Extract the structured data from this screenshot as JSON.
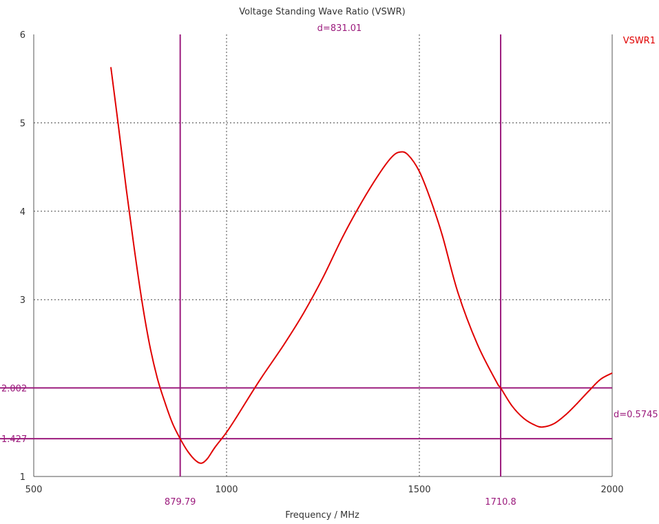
{
  "chart_data": {
    "type": "line",
    "title": "Voltage Standing Wave Ratio (VSWR)",
    "xlabel": "Frequency / MHz",
    "ylabel": "",
    "xlim": [
      500,
      2000
    ],
    "ylim": [
      1,
      6
    ],
    "x_ticks": [
      "500",
      "1000",
      "1500",
      "2000"
    ],
    "y_ticks": [
      "1",
      "3",
      "4",
      "5",
      "6"
    ],
    "grid": true,
    "legend_position": "top-right",
    "series": [
      {
        "name": "VSWR1",
        "color": "#e00000",
        "x": [
          700,
          720,
          740,
          760,
          780,
          800,
          820,
          840,
          860,
          879.79,
          900,
          920,
          935,
          950,
          970,
          1000,
          1030,
          1070,
          1100,
          1150,
          1200,
          1250,
          1300,
          1350,
          1400,
          1430,
          1450,
          1470,
          1500,
          1530,
          1560,
          1600,
          1650,
          1700,
          1710.8,
          1740,
          1770,
          1800,
          1820,
          1850,
          1880,
          1910,
          1940,
          1970,
          2000
        ],
        "y": [
          5.63,
          4.95,
          4.25,
          3.6,
          3.0,
          2.5,
          2.12,
          1.84,
          1.6,
          1.427,
          1.28,
          1.18,
          1.15,
          1.2,
          1.33,
          1.5,
          1.7,
          1.98,
          2.18,
          2.5,
          2.85,
          3.25,
          3.7,
          4.1,
          4.45,
          4.62,
          4.67,
          4.64,
          4.45,
          4.12,
          3.72,
          3.08,
          2.5,
          2.07,
          2.002,
          1.8,
          1.66,
          1.58,
          1.56,
          1.6,
          1.7,
          1.83,
          1.97,
          2.1,
          2.17
        ]
      }
    ],
    "markers": {
      "vertical": [
        {
          "x": 879.79,
          "label": "879.79"
        },
        {
          "x": 1710.8,
          "label": "1710.8"
        }
      ],
      "horizontal": [
        {
          "y": 2.002,
          "label": "2.002"
        },
        {
          "y": 1.427,
          "label": "1.427"
        }
      ],
      "delta_x_label": "d=831.01",
      "delta_y_label": "d=0.5745",
      "color": "#9b1a7c"
    }
  }
}
